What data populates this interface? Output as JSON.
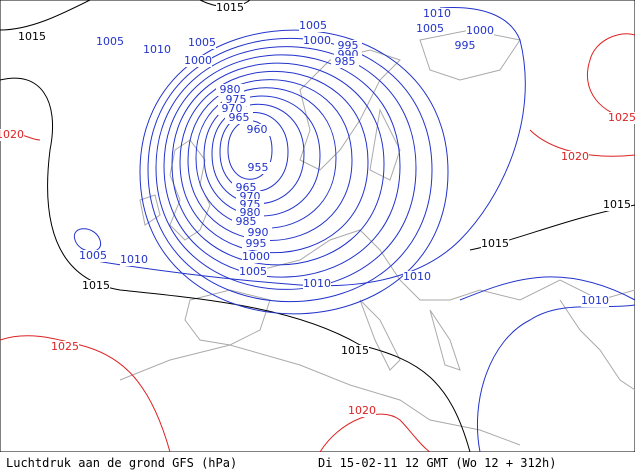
{
  "map": {
    "isobar_labels": [
      {
        "text": "1015",
        "color": "#000000"
      },
      {
        "text": "1010",
        "color": "#2233cc"
      },
      {
        "text": "1015",
        "color": "#000000"
      },
      {
        "text": "1005",
        "color": "#2233cc"
      },
      {
        "text": "1005",
        "color": "#2233cc"
      },
      {
        "text": "1005",
        "color": "#2233cc"
      },
      {
        "text": "1000",
        "color": "#2233cc"
      },
      {
        "text": "1010",
        "color": "#2233cc"
      },
      {
        "text": "1005",
        "color": "#2233cc"
      },
      {
        "text": "1000",
        "color": "#2233cc"
      },
      {
        "text": "995",
        "color": "#2233cc"
      },
      {
        "text": "995",
        "color": "#2233cc"
      },
      {
        "text": "990",
        "color": "#2233cc"
      },
      {
        "text": "985",
        "color": "#2233cc"
      },
      {
        "text": "1000",
        "color": "#2233cc"
      },
      {
        "text": "980",
        "color": "#2233cc"
      },
      {
        "text": "975",
        "color": "#2233cc"
      },
      {
        "text": "970",
        "color": "#2233cc"
      },
      {
        "text": "965",
        "color": "#2233cc"
      },
      {
        "text": "960",
        "color": "#2233cc"
      },
      {
        "text": "955",
        "color": "#2233cc"
      },
      {
        "text": "965",
        "color": "#2233cc"
      },
      {
        "text": "970",
        "color": "#2233cc"
      },
      {
        "text": "975",
        "color": "#2233cc"
      },
      {
        "text": "980",
        "color": "#2233cc"
      },
      {
        "text": "985",
        "color": "#2233cc"
      },
      {
        "text": "990",
        "color": "#2233cc"
      },
      {
        "text": "995",
        "color": "#2233cc"
      },
      {
        "text": "1000",
        "color": "#2233cc"
      },
      {
        "text": "1005",
        "color": "#2233cc"
      },
      {
        "text": "1005",
        "color": "#2233cc"
      },
      {
        "text": "1010",
        "color": "#2233cc"
      },
      {
        "text": "1010",
        "color": "#2233cc"
      },
      {
        "text": "1010",
        "color": "#2233cc"
      },
      {
        "text": "1015",
        "color": "#000000"
      },
      {
        "text": "1015",
        "color": "#000000"
      },
      {
        "text": "1015",
        "color": "#000000"
      },
      {
        "text": "1015",
        "color": "#000000"
      },
      {
        "text": "1010",
        "color": "#2233cc"
      },
      {
        "text": "1020",
        "color": "#dd2222"
      },
      {
        "text": "1025",
        "color": "#dd2222"
      },
      {
        "text": "1020",
        "color": "#dd2222"
      },
      {
        "text": "1025",
        "color": "#dd2222"
      },
      {
        "text": "1020",
        "color": "#dd2222"
      }
    ],
    "footer": {
      "left": "Luchtdruk aan de grond GFS (hPa)",
      "right": "Di 15-02-11 12 GMT (Wo 12 + 312h)"
    }
  }
}
